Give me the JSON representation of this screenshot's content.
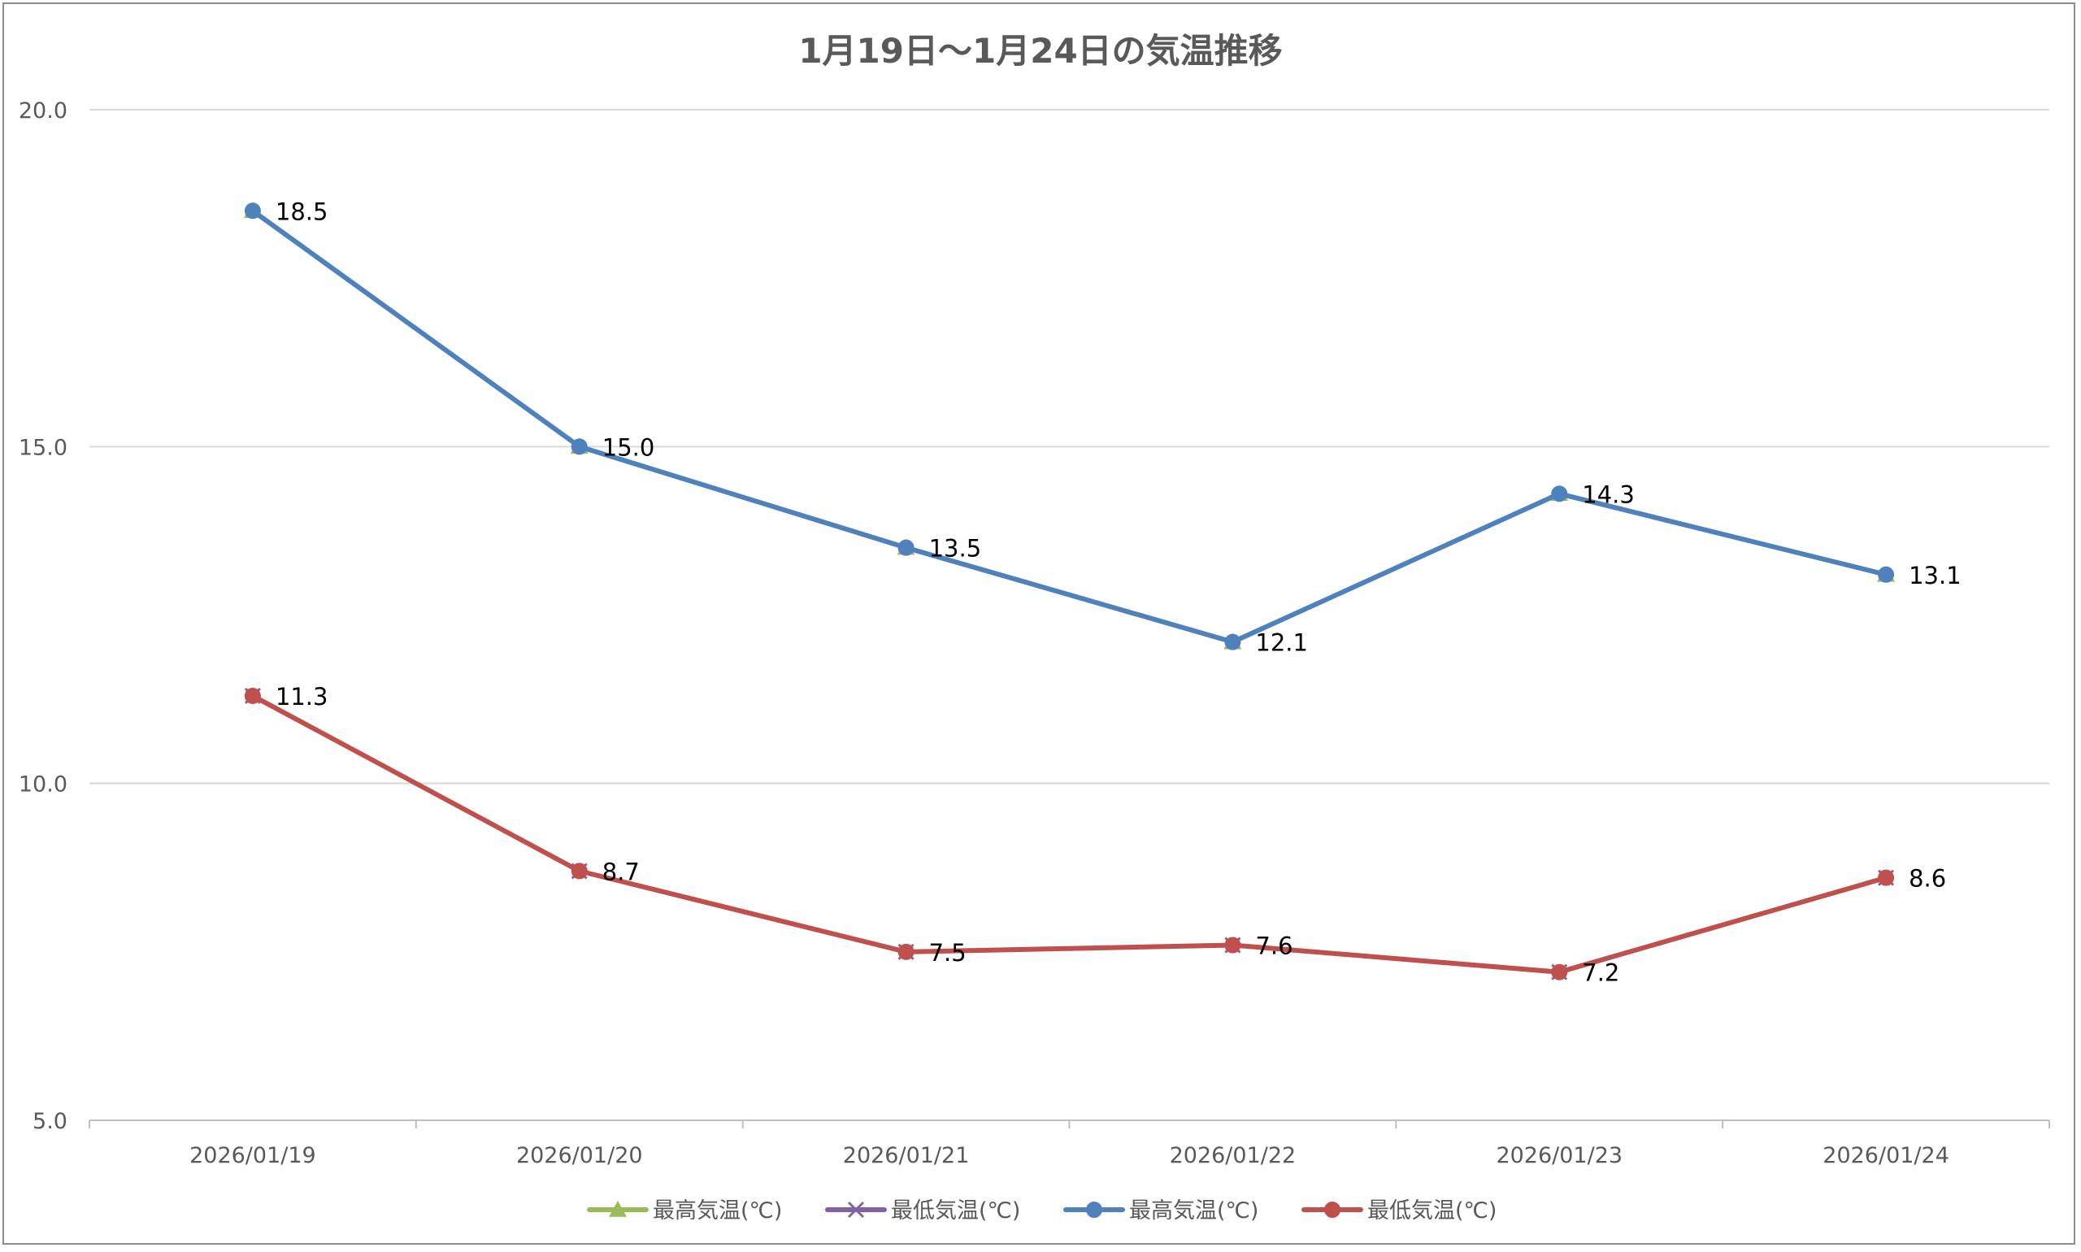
{
  "chart_data": {
    "type": "line",
    "title": "1月19日～1月24日の気温推移",
    "categories": [
      "2026/01/19",
      "2026/01/20",
      "2026/01/21",
      "2026/01/22",
      "2026/01/23",
      "2026/01/24"
    ],
    "ylim": [
      5.0,
      20.0
    ],
    "yticks": [
      "5.0",
      "10.0",
      "15.0",
      "20.0"
    ],
    "ytick_values": [
      5,
      10,
      15,
      20
    ],
    "grid": true,
    "legend_position": "bottom",
    "series": [
      {
        "name": "最高気温(℃)",
        "values": [
          18.5,
          15.0,
          13.5,
          12.1,
          14.3,
          13.1
        ],
        "color": "#9bbb59",
        "marker": "triangle",
        "line": false,
        "labels": false
      },
      {
        "name": "最低気温(℃)",
        "values": [
          11.3,
          8.7,
          7.5,
          7.6,
          7.2,
          8.6
        ],
        "color": "#8064a2",
        "marker": "x",
        "line": false,
        "labels": false
      },
      {
        "name": "最高気温(℃)",
        "values": [
          18.5,
          15.0,
          13.5,
          12.1,
          14.3,
          13.1
        ],
        "color": "#4f81bd",
        "marker": "circle",
        "line": true,
        "labels": true,
        "data_labels": [
          "18.5",
          "15.0",
          "13.5",
          "12.1",
          "14.3",
          "13.1"
        ]
      },
      {
        "name": "最低気温(℃)",
        "values": [
          11.3,
          8.7,
          7.5,
          7.6,
          7.2,
          8.6
        ],
        "color": "#c0504d",
        "marker": "circle",
        "line": true,
        "labels": true,
        "data_labels": [
          "11.3",
          "8.7",
          "7.5",
          "7.6",
          "7.2",
          "8.6"
        ]
      }
    ]
  },
  "colors": {
    "gridline": "#d9d9d9",
    "axis": "#bfbfbf",
    "frame_border": "#8c8c8c"
  }
}
